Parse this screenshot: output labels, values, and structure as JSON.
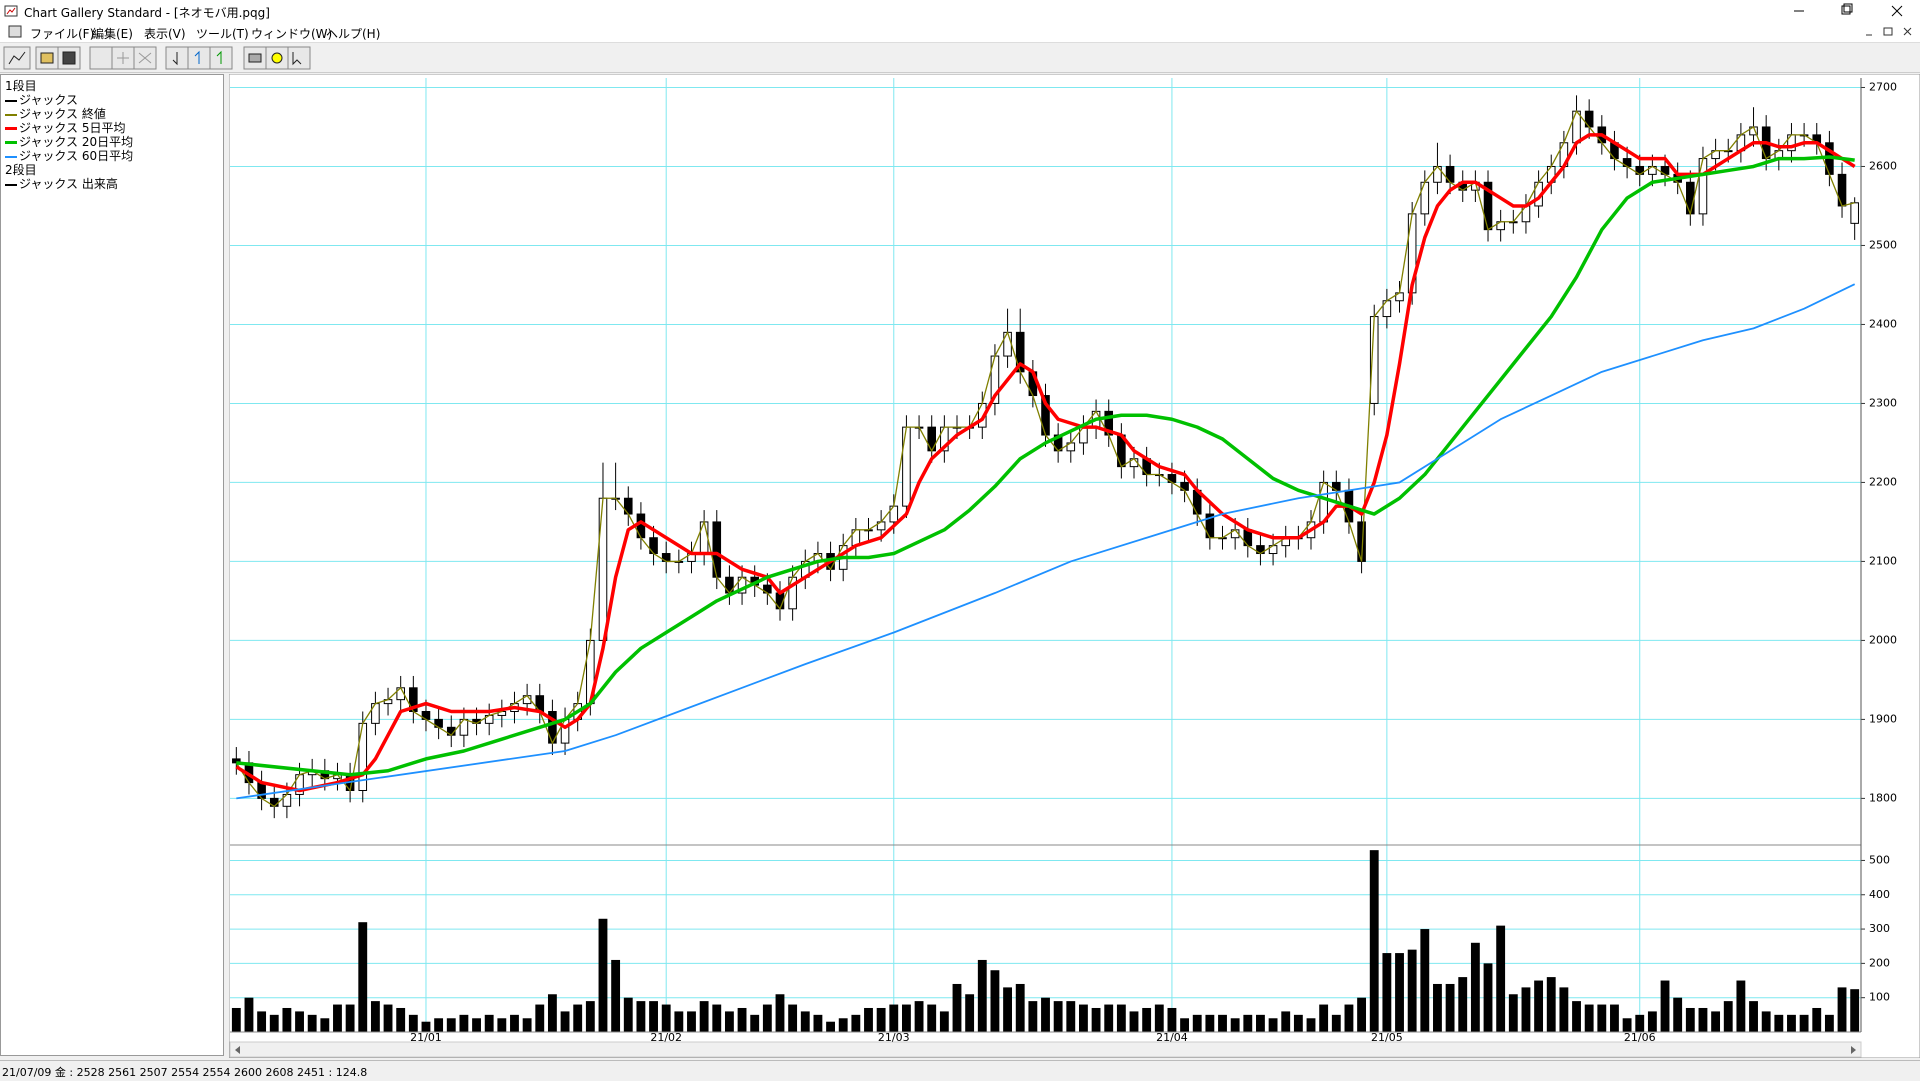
{
  "window": {
    "title": "Chart Gallery Standard - [ネオモバ用.pqg]",
    "menu": [
      "ファイル(F)",
      "編集(E)",
      "表示(V)",
      "ツール(T)",
      "ウィンドウ(W)",
      "ヘルプ(H)"
    ]
  },
  "status_bar": "21/07/09 金 : 2528 2561 2507 2554  2554 2600 2608 2451 : 124.8",
  "chart_data": [
    {
      "type": "candlestick",
      "panel_label": "1段目",
      "categories": [
        null,
        null,
        null,
        null,
        null,
        null,
        null,
        null,
        null,
        null,
        null,
        null,
        null,
        null,
        null,
        "21/01",
        null,
        null,
        null,
        null,
        null,
        null,
        null,
        null,
        null,
        null,
        null,
        null,
        null,
        null,
        null,
        null,
        null,
        null,
        "21/02",
        null,
        null,
        null,
        null,
        null,
        null,
        null,
        null,
        null,
        null,
        null,
        null,
        null,
        null,
        null,
        null,
        null,
        "21/03",
        null,
        null,
        null,
        null,
        null,
        null,
        null,
        null,
        null,
        null,
        null,
        null,
        null,
        null,
        null,
        null,
        null,
        null,
        null,
        null,
        null,
        "21/04",
        null,
        null,
        null,
        null,
        null,
        null,
        null,
        null,
        null,
        null,
        null,
        null,
        null,
        null,
        null,
        null,
        "21/05",
        null,
        null,
        null,
        null,
        null,
        null,
        null,
        null,
        null,
        null,
        null,
        null,
        null,
        null,
        null,
        null,
        null,
        null,
        null,
        "21/06",
        null,
        null,
        null,
        null,
        null,
        null,
        null,
        null,
        null,
        null,
        null,
        null,
        null,
        null,
        null,
        null,
        null
      ],
      "candles": {
        "name": "ジャックス",
        "color": "#000000",
        "open": [
          1850,
          1845,
          1820,
          1800,
          1790,
          1805,
          1830,
          1835,
          1825,
          1830,
          1810,
          1895,
          1920,
          1925,
          1940,
          1910,
          1900,
          1890,
          1880,
          1900,
          1895,
          1905,
          1910,
          1920,
          1930,
          1910,
          1870,
          1900,
          1920,
          2000,
          2180,
          2180,
          2160,
          2130,
          2110,
          2100,
          2100,
          2110,
          2150,
          2080,
          2060,
          2080,
          2070,
          2060,
          2040,
          2080,
          2100,
          2110,
          2090,
          2120,
          2140,
          2140,
          2150,
          2170,
          2270,
          2270,
          2240,
          2270,
          2270,
          2270,
          2300,
          2360,
          2390,
          2340,
          2310,
          2260,
          2240,
          2250,
          2270,
          2290,
          2260,
          2220,
          2230,
          2210,
          2210,
          2200,
          2190,
          2160,
          2130,
          2130,
          2140,
          2120,
          2110,
          2120,
          2130,
          2130,
          2150,
          2200,
          2190,
          2150,
          2300,
          2410,
          2430,
          2440,
          2540,
          2580,
          2600,
          2580,
          2570,
          2580,
          2520,
          2530,
          2530,
          2550,
          2580,
          2600,
          2630,
          2670,
          2650,
          2630,
          2610,
          2600,
          2590,
          2600,
          2590,
          2580,
          2540,
          2610,
          2620,
          2620,
          2640,
          2650,
          2610,
          2620,
          2640,
          2640,
          2630,
          2590,
          2528
        ],
        "high": [
          1865,
          1860,
          1835,
          1815,
          1820,
          1845,
          1850,
          1850,
          1845,
          1845,
          1910,
          1935,
          1940,
          1955,
          1955,
          1925,
          1915,
          1905,
          1915,
          1915,
          1920,
          1925,
          1935,
          1945,
          1945,
          1925,
          1915,
          1935,
          2015,
          2225,
          2225,
          2195,
          2175,
          2145,
          2125,
          2115,
          2125,
          2165,
          2165,
          2095,
          2095,
          2095,
          2085,
          2075,
          2095,
          2115,
          2125,
          2125,
          2135,
          2155,
          2155,
          2165,
          2185,
          2285,
          2285,
          2285,
          2285,
          2285,
          2285,
          2315,
          2375,
          2420,
          2420,
          2355,
          2325,
          2275,
          2265,
          2285,
          2305,
          2305,
          2275,
          2245,
          2245,
          2225,
          2225,
          2215,
          2205,
          2175,
          2145,
          2155,
          2155,
          2135,
          2135,
          2145,
          2145,
          2165,
          2215,
          2215,
          2205,
          2165,
          2425,
          2445,
          2455,
          2555,
          2595,
          2630,
          2615,
          2595,
          2595,
          2595,
          2545,
          2545,
          2565,
          2595,
          2615,
          2645,
          2690,
          2685,
          2665,
          2645,
          2625,
          2615,
          2615,
          2615,
          2605,
          2595,
          2625,
          2635,
          2635,
          2655,
          2675,
          2665,
          2635,
          2655,
          2655,
          2655,
          2645,
          2605,
          2561
        ],
        "low": [
          1830,
          1805,
          1785,
          1775,
          1775,
          1790,
          1815,
          1810,
          1810,
          1795,
          1795,
          1880,
          1905,
          1910,
          1895,
          1885,
          1875,
          1865,
          1865,
          1880,
          1880,
          1890,
          1895,
          1905,
          1895,
          1855,
          1855,
          1885,
          1905,
          1985,
          2165,
          2145,
          2115,
          2095,
          2085,
          2085,
          2085,
          2095,
          2065,
          2045,
          2045,
          2055,
          2045,
          2025,
          2025,
          2065,
          2085,
          2075,
          2075,
          2105,
          2125,
          2125,
          2135,
          2155,
          2255,
          2225,
          2225,
          2255,
          2255,
          2255,
          2285,
          2345,
          2325,
          2295,
          2245,
          2225,
          2225,
          2235,
          2255,
          2245,
          2205,
          2205,
          2195,
          2195,
          2185,
          2175,
          2145,
          2115,
          2115,
          2115,
          2105,
          2095,
          2095,
          2105,
          2115,
          2115,
          2135,
          2175,
          2135,
          2085,
          2285,
          2395,
          2415,
          2425,
          2525,
          2565,
          2565,
          2555,
          2555,
          2505,
          2505,
          2515,
          2515,
          2535,
          2565,
          2585,
          2615,
          2635,
          2615,
          2595,
          2585,
          2575,
          2575,
          2575,
          2565,
          2525,
          2525,
          2595,
          2605,
          2605,
          2625,
          2595,
          2595,
          2605,
          2625,
          2615,
          2575,
          2535,
          2507
        ],
        "close": [
          1845,
          1820,
          1800,
          1790,
          1805,
          1830,
          1835,
          1825,
          1830,
          1810,
          1895,
          1920,
          1925,
          1940,
          1910,
          1900,
          1890,
          1880,
          1900,
          1895,
          1905,
          1910,
          1920,
          1930,
          1910,
          1870,
          1900,
          1920,
          2000,
          2180,
          2180,
          2160,
          2130,
          2110,
          2100,
          2100,
          2110,
          2150,
          2080,
          2060,
          2080,
          2070,
          2060,
          2040,
          2080,
          2100,
          2110,
          2090,
          2120,
          2140,
          2140,
          2150,
          2170,
          2270,
          2270,
          2240,
          2270,
          2270,
          2270,
          2300,
          2360,
          2390,
          2340,
          2310,
          2260,
          2240,
          2250,
          2270,
          2290,
          2260,
          2220,
          2230,
          2210,
          2210,
          2200,
          2190,
          2160,
          2130,
          2130,
          2140,
          2120,
          2110,
          2120,
          2130,
          2130,
          2150,
          2200,
          2190,
          2150,
          2100,
          2410,
          2430,
          2440,
          2540,
          2580,
          2600,
          2580,
          2570,
          2580,
          2520,
          2530,
          2530,
          2550,
          2580,
          2600,
          2630,
          2670,
          2650,
          2630,
          2610,
          2600,
          2590,
          2600,
          2590,
          2580,
          2540,
          2610,
          2620,
          2620,
          2640,
          2650,
          2610,
          2620,
          2640,
          2640,
          2630,
          2590,
          2550,
          2554
        ]
      },
      "close_line": {
        "name": "ジャックス 終値",
        "color": "#808000"
      },
      "series": [
        {
          "name": "ジャックス 5日平均",
          "color": "#ff0000",
          "x": [
            0,
            2,
            5,
            8,
            10,
            11,
            12,
            13,
            15,
            17,
            20,
            22,
            24,
            26,
            27,
            28,
            29,
            30,
            31,
            32,
            34,
            36,
            38,
            40,
            42,
            43,
            45,
            47,
            49,
            51,
            53,
            54,
            55,
            57,
            59,
            60,
            62,
            63,
            64,
            65,
            67,
            68,
            70,
            71,
            73,
            75,
            76,
            78,
            80,
            82,
            84,
            86,
            87,
            88,
            89,
            90,
            91,
            92,
            93,
            94,
            95,
            96,
            97,
            98,
            99,
            100,
            101,
            102,
            103,
            104,
            105,
            106,
            107,
            108,
            109,
            110,
            111,
            112,
            113,
            114,
            115,
            116,
            117,
            118,
            119,
            120,
            121,
            122,
            123,
            124,
            125,
            126,
            127,
            128
          ],
          "values": [
            1840,
            1820,
            1810,
            1820,
            1830,
            1850,
            1880,
            1910,
            1920,
            1910,
            1910,
            1915,
            1910,
            1890,
            1900,
            1920,
            1990,
            2080,
            2140,
            2150,
            2130,
            2110,
            2110,
            2090,
            2080,
            2060,
            2080,
            2100,
            2120,
            2130,
            2160,
            2200,
            2230,
            2260,
            2280,
            2310,
            2350,
            2340,
            2300,
            2280,
            2270,
            2270,
            2260,
            2240,
            2220,
            2210,
            2190,
            2160,
            2140,
            2130,
            2130,
            2150,
            2170,
            2170,
            2160,
            2200,
            2260,
            2350,
            2450,
            2510,
            2550,
            2570,
            2580,
            2580,
            2570,
            2560,
            2550,
            2550,
            2560,
            2580,
            2600,
            2630,
            2640,
            2640,
            2630,
            2620,
            2610,
            2610,
            2610,
            2590,
            2590,
            2590,
            2600,
            2610,
            2620,
            2630,
            2630,
            2625,
            2625,
            2630,
            2630,
            2620,
            2610,
            2600
          ]
        },
        {
          "name": "ジャックス 20日平均",
          "color": "#00c000",
          "x": [
            0,
            9,
            12,
            15,
            18,
            21,
            24,
            26,
            28,
            30,
            32,
            34,
            36,
            38,
            40,
            42,
            44,
            46,
            48,
            50,
            52,
            54,
            56,
            58,
            60,
            62,
            64,
            66,
            68,
            70,
            72,
            74,
            76,
            78,
            80,
            82,
            84,
            86,
            88,
            90,
            92,
            94,
            96,
            98,
            100,
            102,
            104,
            106,
            108,
            110,
            112,
            114,
            116,
            118,
            120,
            122,
            124,
            126,
            128
          ],
          "values": [
            1845,
            1830,
            1835,
            1850,
            1860,
            1875,
            1890,
            1900,
            1920,
            1960,
            1990,
            2010,
            2030,
            2050,
            2065,
            2080,
            2090,
            2100,
            2105,
            2105,
            2110,
            2125,
            2140,
            2165,
            2195,
            2230,
            2250,
            2265,
            2280,
            2285,
            2285,
            2280,
            2270,
            2255,
            2230,
            2205,
            2190,
            2180,
            2170,
            2160,
            2180,
            2210,
            2250,
            2290,
            2330,
            2370,
            2410,
            2460,
            2520,
            2560,
            2580,
            2585,
            2590,
            2595,
            2600,
            2610,
            2610,
            2612,
            2608
          ]
        },
        {
          "name": "ジャックス 60日平均",
          "color": "#1e90ff",
          "x": [
            0,
            26,
            30,
            35,
            40,
            45,
            52,
            60,
            66,
            72,
            78,
            84,
            88,
            92,
            96,
            100,
            104,
            108,
            112,
            116,
            120,
            124,
            128
          ],
          "values": [
            1800,
            1860,
            1880,
            1910,
            1940,
            1970,
            2010,
            2060,
            2100,
            2130,
            2160,
            2180,
            2190,
            2200,
            2240,
            2280,
            2310,
            2340,
            2360,
            2380,
            2395,
            2420,
            2451
          ]
        }
      ],
      "ylim": [
        1741,
        2712
      ],
      "yticks": [
        1800,
        1900,
        2000,
        2100,
        2200,
        2300,
        2400,
        2500,
        2600,
        2700
      ],
      "grid": true
    },
    {
      "type": "bar",
      "panel_label": "2段目",
      "name": "ジャックス 出来高",
      "color": "#000000",
      "values": [
        70,
        100,
        60,
        50,
        70,
        60,
        50,
        40,
        80,
        80,
        320,
        90,
        80,
        70,
        50,
        30,
        40,
        40,
        50,
        40,
        50,
        40,
        50,
        40,
        80,
        110,
        60,
        80,
        90,
        330,
        210,
        100,
        90,
        90,
        80,
        60,
        60,
        90,
        80,
        60,
        70,
        50,
        80,
        110,
        80,
        60,
        50,
        30,
        40,
        50,
        70,
        70,
        80,
        80,
        90,
        80,
        60,
        140,
        110,
        210,
        180,
        130,
        140,
        90,
        100,
        90,
        90,
        80,
        70,
        80,
        80,
        60,
        70,
        80,
        70,
        40,
        50,
        50,
        50,
        40,
        50,
        50,
        40,
        60,
        50,
        40,
        80,
        50,
        80,
        100,
        530,
        230,
        230,
        240,
        300,
        140,
        140,
        160,
        260,
        200,
        310,
        110,
        130,
        150,
        160,
        130,
        90,
        80,
        80,
        80,
        40,
        50,
        60,
        150,
        100,
        70,
        70,
        60,
        90,
        150,
        90,
        60,
        50,
        50,
        50,
        70,
        50,
        130,
        124.8
      ],
      "ylim": [
        0,
        545
      ],
      "yticks": [
        100,
        200,
        300,
        400,
        500
      ],
      "grid": true
    }
  ]
}
